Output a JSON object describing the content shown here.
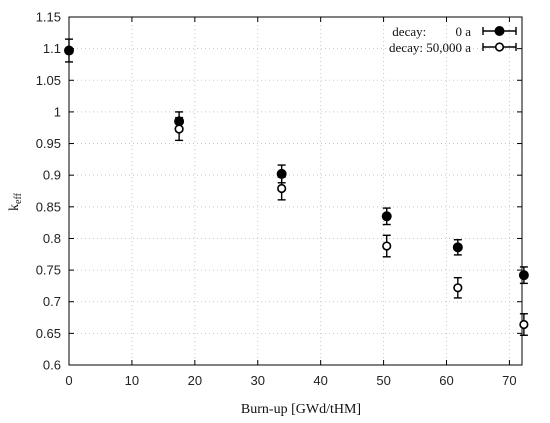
{
  "chart_data": {
    "type": "scatter",
    "xlabel": "Burn-up  [GWd/tHM]",
    "ylabel": "k",
    "ylabel_subscript": "eff",
    "xlim": [
      0,
      72
    ],
    "ylim": [
      0.6,
      1.15
    ],
    "x_ticks": [
      0,
      10,
      20,
      30,
      40,
      50,
      60,
      70
    ],
    "y_ticks": [
      0.6,
      0.65,
      0.7,
      0.75,
      0.8,
      0.85,
      0.9,
      0.95,
      1,
      1.05,
      1.1,
      1.15
    ],
    "y_tick_labels": [
      "0.6",
      "0.65",
      "0.7",
      "0.75",
      "0.8",
      "0.85",
      "0.9",
      "0.95",
      "1",
      "1.05",
      "1.1",
      "1.15"
    ],
    "grid": true,
    "legend_position": "top-right",
    "series": [
      {
        "name": "decay:         0 a",
        "marker": "filled-circle",
        "color": "#000000",
        "x": [
          0,
          17.5,
          33.8,
          50.5,
          61.8,
          72.3
        ],
        "y": [
          1.097,
          0.985,
          0.902,
          0.835,
          0.786,
          0.742
        ],
        "yerr": [
          0.018,
          0.015,
          0.014,
          0.013,
          0.012,
          0.013
        ]
      },
      {
        "name": "decay: 50,000 a",
        "marker": "open-circle",
        "color": "#000000",
        "x": [
          0,
          17.5,
          33.8,
          50.5,
          61.8,
          72.3
        ],
        "y": [
          null,
          0.973,
          0.879,
          0.788,
          0.722,
          0.664
        ],
        "yerr": [
          null,
          0.018,
          0.018,
          0.017,
          0.016,
          0.017
        ]
      }
    ]
  }
}
